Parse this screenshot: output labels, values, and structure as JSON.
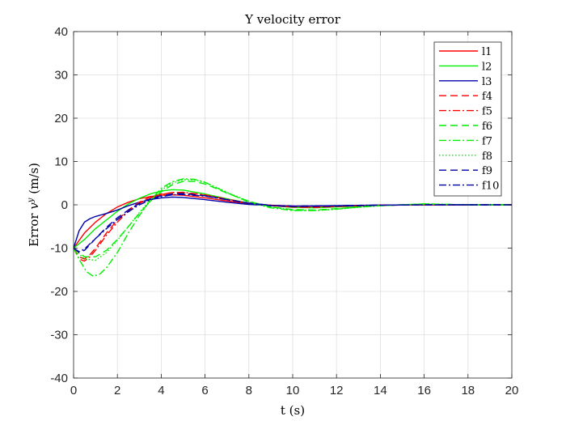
{
  "chart_data": {
    "type": "line",
    "title": "Y velocity error",
    "xlabel": "t (s)",
    "ylabel": {
      "prefix": "Error ",
      "var": "v",
      "sup": "y",
      "suffix": " (m/s)"
    },
    "xlim": [
      0,
      20
    ],
    "ylim": [
      -40,
      40
    ],
    "xticks": [
      "0",
      "2",
      "4",
      "6",
      "8",
      "10",
      "12",
      "14",
      "16",
      "18",
      "20"
    ],
    "yticks": [
      "-40",
      "-30",
      "-20",
      "-10",
      "0",
      "10",
      "20",
      "30",
      "40"
    ],
    "grid": true,
    "legend_position": "top-right",
    "series": [
      {
        "name": "l1",
        "color": "#ff0000",
        "style": "solid",
        "x": [
          0,
          0.5,
          1,
          1.5,
          2,
          2.5,
          3,
          3.5,
          4,
          4.5,
          5,
          6,
          7,
          8,
          9,
          10,
          11,
          12,
          14,
          16,
          18,
          20
        ],
        "y": [
          -10,
          -6.5,
          -4,
          -2,
          -0.5,
          0.6,
          1.4,
          1.9,
          2.2,
          2.3,
          2.2,
          1.6,
          0.9,
          0.3,
          -0.1,
          -0.3,
          -0.4,
          -0.3,
          -0.1,
          0,
          0,
          0
        ]
      },
      {
        "name": "l2",
        "color": "#00ee00",
        "style": "solid",
        "x": [
          0,
          0.5,
          1,
          1.5,
          2,
          2.5,
          3,
          3.5,
          4,
          4.5,
          5,
          6,
          7,
          8,
          9,
          10,
          11,
          12,
          14,
          16,
          18,
          20
        ],
        "y": [
          -10,
          -8,
          -5.5,
          -3.5,
          -1.5,
          0.2,
          1.5,
          2.5,
          3.2,
          3.5,
          3.4,
          2.5,
          1.4,
          0.4,
          -0.2,
          -0.6,
          -0.7,
          -0.5,
          -0.1,
          0.1,
          0,
          0
        ]
      },
      {
        "name": "l3",
        "color": "#0000aa",
        "style": "solid",
        "x": [
          0,
          0.25,
          0.5,
          0.75,
          1,
          1.5,
          2,
          2.5,
          3,
          3.5,
          4,
          4.5,
          5,
          6,
          7,
          8,
          9,
          10,
          12,
          14,
          16,
          18,
          20
        ],
        "y": [
          -10,
          -6,
          -4,
          -3.2,
          -2.7,
          -2,
          -1.2,
          -0.2,
          0.6,
          1.2,
          1.6,
          1.8,
          1.7,
          1.2,
          0.6,
          0.1,
          -0.2,
          -0.3,
          -0.2,
          -0.05,
          0,
          0,
          0
        ]
      },
      {
        "name": "f4",
        "color": "#ff0000",
        "style": "dashed",
        "x": [
          0,
          0.25,
          0.5,
          0.75,
          1,
          1.5,
          2,
          2.5,
          3,
          3.5,
          4,
          4.5,
          5,
          6,
          7,
          8,
          9,
          10,
          11,
          12,
          14,
          16,
          18,
          20
        ],
        "y": [
          -10,
          -12,
          -12.5,
          -11.5,
          -10,
          -6.5,
          -3.5,
          -1.2,
          0.6,
          1.8,
          2.5,
          2.8,
          2.8,
          2.2,
          1.2,
          0.4,
          -0.2,
          -0.5,
          -0.6,
          -0.4,
          -0.1,
          0,
          0,
          0
        ]
      },
      {
        "name": "f5",
        "color": "#ff0000",
        "style": "dashdot",
        "x": [
          0,
          0.25,
          0.5,
          0.75,
          1,
          1.5,
          2,
          2.5,
          3,
          3.5,
          4,
          4.5,
          5,
          6,
          7,
          8,
          9,
          10,
          11,
          12,
          14,
          16,
          18,
          20
        ],
        "y": [
          -10,
          -12.5,
          -13,
          -12,
          -10.5,
          -7,
          -4,
          -1.5,
          0.3,
          1.6,
          2.4,
          2.8,
          2.9,
          2.3,
          1.3,
          0.4,
          -0.2,
          -0.5,
          -0.6,
          -0.4,
          -0.1,
          0,
          0,
          0
        ]
      },
      {
        "name": "f6",
        "color": "#00ee00",
        "style": "dashed",
        "x": [
          0,
          0.5,
          1,
          1.5,
          2,
          2.5,
          3,
          3.5,
          4,
          4.5,
          5,
          5.5,
          6,
          6.5,
          7,
          8,
          9,
          10,
          11,
          12,
          13,
          14,
          16,
          18,
          20
        ],
        "y": [
          -10,
          -12,
          -12,
          -10.5,
          -8,
          -5,
          -2,
          0.8,
          3,
          4.6,
          5.4,
          5.4,
          4.8,
          3.8,
          2.7,
          0.8,
          -0.5,
          -1.1,
          -1.2,
          -0.9,
          -0.5,
          -0.2,
          0.2,
          0,
          0
        ]
      },
      {
        "name": "f7",
        "color": "#00ee00",
        "style": "dashdot",
        "x": [
          0,
          0.3,
          0.6,
          0.9,
          1.2,
          1.5,
          2,
          2.5,
          3,
          3.5,
          4,
          4.5,
          5,
          5.5,
          6,
          6.5,
          7,
          8,
          9,
          10,
          11,
          12,
          13,
          14,
          16,
          18,
          20
        ],
        "y": [
          -10,
          -13,
          -15.5,
          -16.5,
          -16,
          -14.5,
          -11,
          -6.5,
          -2.5,
          1,
          3.8,
          5.3,
          6,
          5.9,
          5.2,
          4,
          2.8,
          0.6,
          -0.7,
          -1.3,
          -1.3,
          -1,
          -0.5,
          -0.2,
          0.2,
          0,
          0
        ]
      },
      {
        "name": "f8",
        "color": "#00ee00",
        "style": "dotted",
        "x": [
          0,
          0.5,
          1,
          1.5,
          2,
          2.5,
          3,
          3.5,
          4,
          4.5,
          5,
          5.5,
          6,
          6.5,
          7,
          8,
          9,
          10,
          11,
          12,
          13,
          14,
          16,
          18,
          20
        ],
        "y": [
          -10,
          -12.5,
          -12.8,
          -11,
          -8.2,
          -5,
          -1.8,
          1.1,
          3.4,
          5,
          5.8,
          5.8,
          5.2,
          4.1,
          2.9,
          0.8,
          -0.5,
          -1.2,
          -1.3,
          -1,
          -0.6,
          -0.2,
          0.2,
          0,
          0
        ]
      },
      {
        "name": "f9",
        "color": "#0000aa",
        "style": "dashed",
        "x": [
          0,
          0.25,
          0.5,
          0.75,
          1,
          1.5,
          2,
          2.5,
          3,
          3.5,
          4,
          4.5,
          5,
          6,
          7,
          8,
          9,
          10,
          12,
          14,
          16,
          18,
          20
        ],
        "y": [
          -10,
          -11,
          -10.5,
          -9.2,
          -7.8,
          -5.2,
          -3,
          -1.2,
          0.3,
          1.4,
          2.1,
          2.5,
          2.6,
          2.1,
          1.2,
          0.4,
          -0.2,
          -0.4,
          -0.3,
          -0.1,
          0,
          0,
          0
        ]
      },
      {
        "name": "f10",
        "color": "#0000aa",
        "style": "dashdot",
        "x": [
          0,
          0.25,
          0.5,
          0.75,
          1,
          1.5,
          2,
          2.5,
          3,
          3.5,
          4,
          4.5,
          5,
          6,
          7,
          8,
          9,
          10,
          12,
          14,
          16,
          18,
          20
        ],
        "y": [
          -10,
          -10.8,
          -10.2,
          -9,
          -7.8,
          -5.5,
          -3.4,
          -1.6,
          0,
          1.1,
          1.9,
          2.3,
          2.4,
          2,
          1.2,
          0.4,
          -0.1,
          -0.3,
          -0.2,
          -0.05,
          0,
          0,
          0
        ]
      }
    ]
  }
}
